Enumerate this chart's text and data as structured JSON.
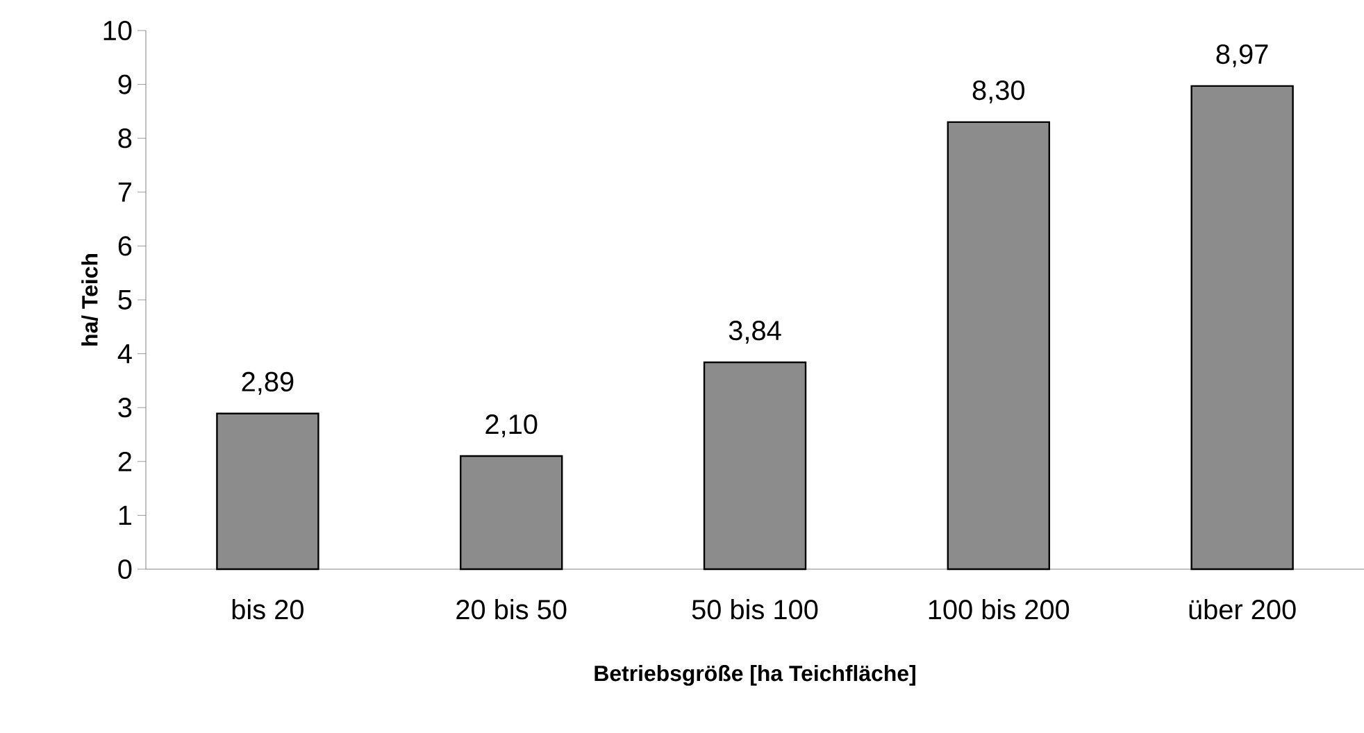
{
  "chart_data": {
    "type": "bar",
    "xlabel": "Betriebsgröße [ha Teichfläche]",
    "ylabel": "ha/ Teich",
    "categories": [
      "bis 20",
      "20 bis 50",
      "50 bis 100",
      "100 bis 200",
      "über 200"
    ],
    "values": [
      2.89,
      2.1,
      3.84,
      8.3,
      8.97
    ],
    "value_labels": [
      "2,89",
      "2,10",
      "3,84",
      "8,30",
      "8,97"
    ],
    "color": "#8c8c8c",
    "ylim": [
      0,
      10
    ],
    "yticks": [
      0,
      1,
      2,
      3,
      4,
      5,
      6,
      7,
      8,
      9,
      10
    ]
  }
}
